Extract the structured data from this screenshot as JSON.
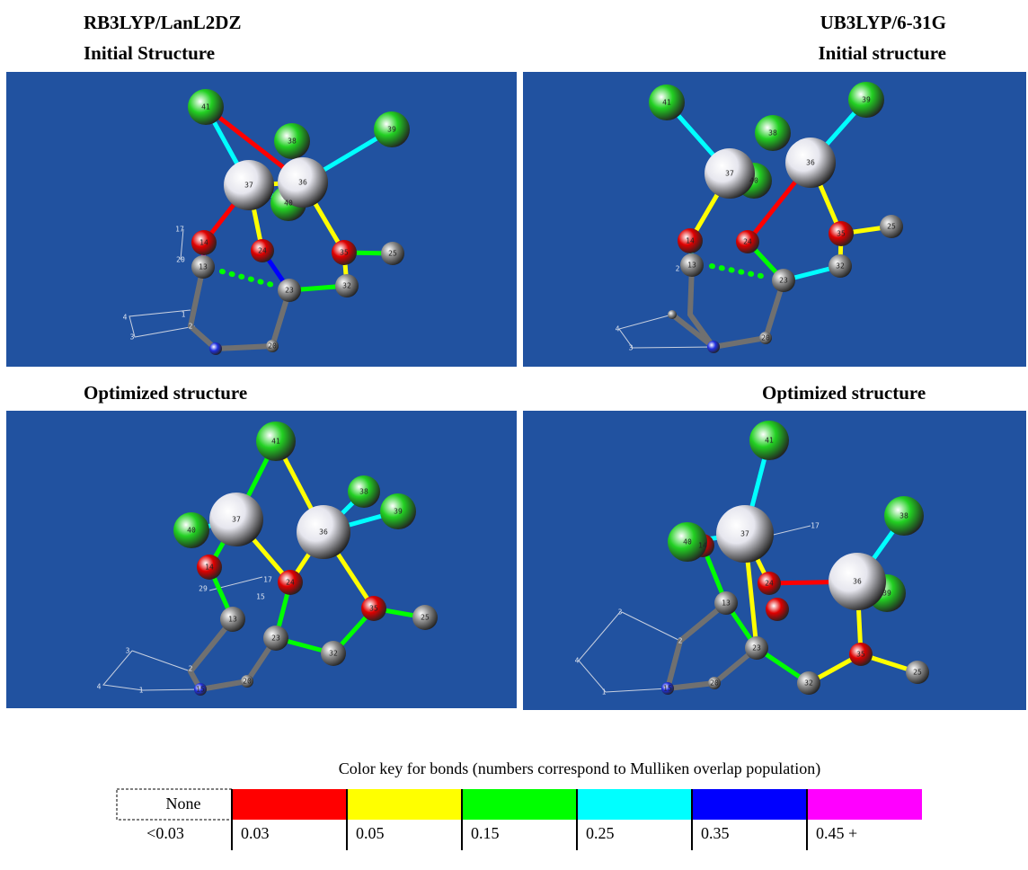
{
  "panels": [
    {
      "heading": "RB3LYP/LanL2DZ",
      "title": "Initial Structure",
      "atoms": [
        "41",
        "38",
        "39",
        "37",
        "36",
        "40",
        "14",
        "24",
        "35",
        "25",
        "13",
        "23",
        "32",
        "20",
        "17",
        "20",
        "1",
        "2",
        "4",
        "3"
      ]
    },
    {
      "heading": "UB3LYP/6-31G",
      "title": "Initial structure",
      "atoms": [
        "41",
        "39",
        "38",
        "37",
        "36",
        "40",
        "14",
        "24",
        "35",
        "25",
        "13",
        "23",
        "32",
        "20",
        "4",
        "3",
        "2"
      ]
    },
    {
      "title": "Optimized structure",
      "atoms": [
        "41",
        "38",
        "39",
        "37",
        "36",
        "40",
        "14",
        "24",
        "35",
        "25",
        "13",
        "23",
        "32",
        "20",
        "15",
        "17",
        "29",
        "15",
        "3",
        "2",
        "4",
        "1"
      ]
    },
    {
      "title": "Optimized structure",
      "atoms": [
        "41",
        "38",
        "37",
        "36",
        "39",
        "40",
        "14",
        "24",
        "35",
        "25",
        "13",
        "23",
        "32",
        "15",
        "20",
        "17",
        "3",
        "2",
        "4",
        "1"
      ]
    }
  ],
  "key": {
    "title": "Color key for bonds (numbers correspond to Mulliken overlap population)",
    "none": "None",
    "none_label": "<0.03",
    "items": [
      {
        "color": "#ff0000",
        "label": "0.03"
      },
      {
        "color": "#ffff00",
        "label": "0.05"
      },
      {
        "color": "#00ff00",
        "label": "0.15"
      },
      {
        "color": "#00ffff",
        "label": "0.25"
      },
      {
        "color": "#0000ff",
        "label": "0.35"
      },
      {
        "color": "#ff00ff",
        "label": "0.45 +"
      }
    ]
  }
}
